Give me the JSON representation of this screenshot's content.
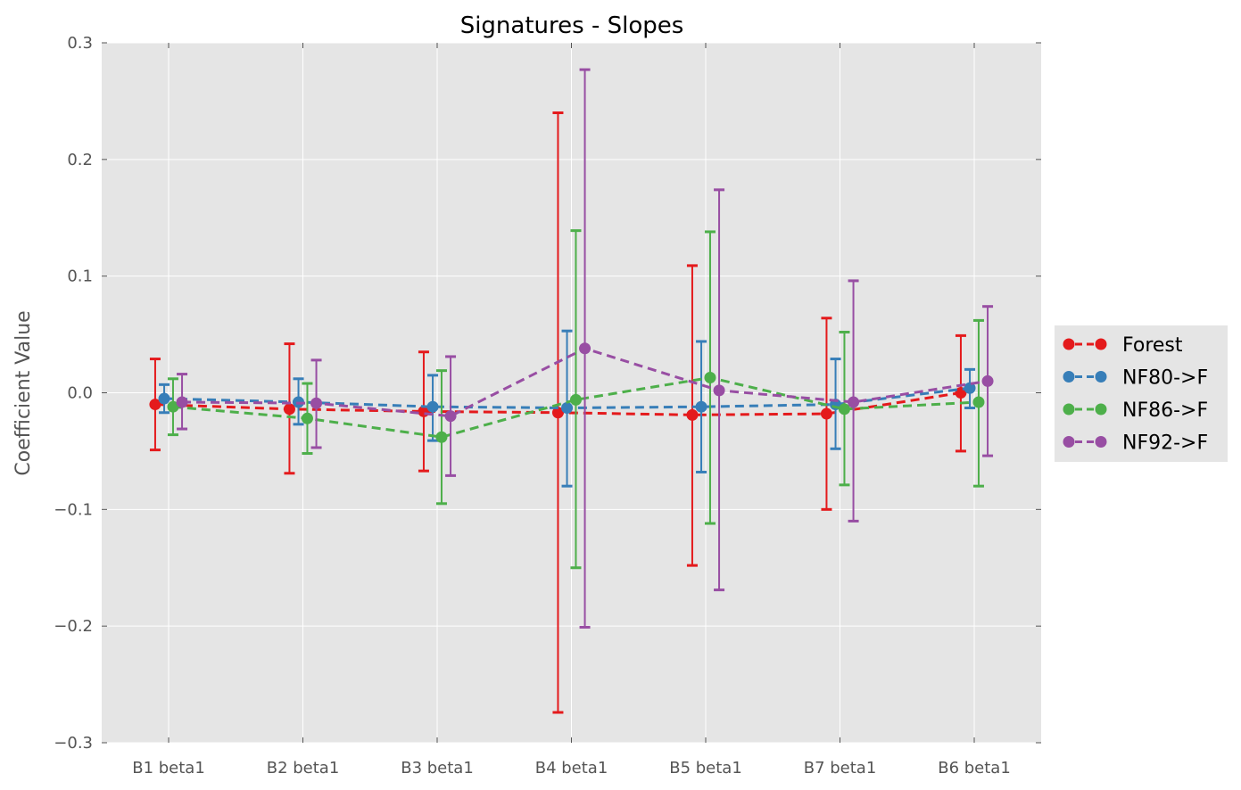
{
  "chart_data": {
    "type": "line",
    "title": "Signatures - Slopes",
    "xlabel": "",
    "ylabel": "Coefficient Value",
    "ylim": [
      -0.3,
      0.3
    ],
    "yticks": [
      -0.3,
      -0.2,
      -0.1,
      0.0,
      0.1,
      0.2,
      0.3
    ],
    "ytick_labels": [
      "−0.3",
      "−0.2",
      "−0.1",
      "0.0",
      "0.1",
      "0.2",
      "0.3"
    ],
    "categories": [
      "B1 beta1",
      "B2 beta1",
      "B3 beta1",
      "B4 beta1",
      "B5 beta1",
      "B7 beta1",
      "B6 beta1"
    ],
    "grid": true,
    "legend_position": "right-center",
    "error_bars": true,
    "series": [
      {
        "name": "Forest",
        "color": "#e41a1c",
        "offset": -0.1,
        "values": [
          -0.01,
          -0.014,
          -0.016,
          -0.017,
          -0.019,
          -0.018,
          0.0
        ],
        "lower": [
          -0.049,
          -0.069,
          -0.067,
          -0.274,
          -0.148,
          -0.1,
          -0.05
        ],
        "upper": [
          0.029,
          0.042,
          0.035,
          0.24,
          0.109,
          0.064,
          0.049
        ]
      },
      {
        "name": "NF80->F",
        "color": "#377eb8",
        "offset": -0.033,
        "values": [
          -0.005,
          -0.008,
          -0.012,
          -0.013,
          -0.012,
          -0.01,
          0.004
        ],
        "lower": [
          -0.017,
          -0.027,
          -0.041,
          -0.08,
          -0.068,
          -0.048,
          -0.013
        ],
        "upper": [
          0.007,
          0.012,
          0.015,
          0.053,
          0.044,
          0.029,
          0.02
        ]
      },
      {
        "name": "NF86->F",
        "color": "#4daf4a",
        "offset": 0.033,
        "values": [
          -0.012,
          -0.022,
          -0.038,
          -0.006,
          0.013,
          -0.014,
          -0.008
        ],
        "lower": [
          -0.036,
          -0.052,
          -0.095,
          -0.15,
          -0.112,
          -0.079,
          -0.08
        ],
        "upper": [
          0.012,
          0.008,
          0.019,
          0.139,
          0.138,
          0.052,
          0.062
        ]
      },
      {
        "name": "NF92->F",
        "color": "#984ea3",
        "offset": 0.1,
        "values": [
          -0.008,
          -0.009,
          -0.02,
          0.038,
          0.002,
          -0.008,
          0.01
        ],
        "lower": [
          -0.031,
          -0.047,
          -0.071,
          -0.201,
          -0.169,
          -0.11,
          -0.054
        ],
        "upper": [
          0.016,
          0.028,
          0.031,
          0.277,
          0.174,
          0.096,
          0.074
        ]
      }
    ]
  }
}
